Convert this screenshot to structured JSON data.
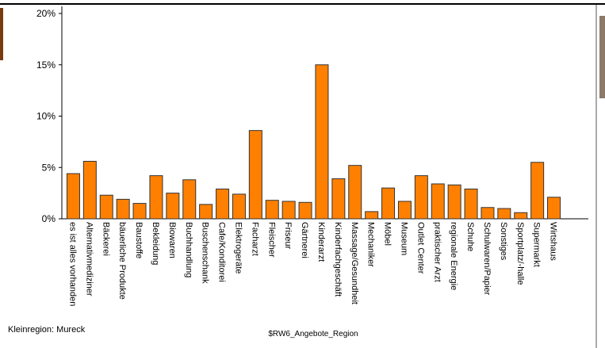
{
  "chart_data": {
    "type": "bar",
    "categories": [
      "es ist alles vorhanden",
      "Alternativmediziner",
      "Bäckerei",
      "bäuerliche Produkte",
      "Baustoffe",
      "Bekleidung",
      "Biowaren",
      "Buchhandlung",
      "Buschenschank",
      "Cafe/Konditorei",
      "Elektrogeräte",
      "Facharzt",
      "Fleischer",
      "Friseur",
      "Gärtnerei",
      "Kinderarzt",
      "Kinderfachgeschäft",
      "Massage/Gesundheit",
      "Mechaniker",
      "Möbel",
      "Museum",
      "Outlet Center",
      "praktischer Arzt",
      "regionale Energie",
      "Schuhe",
      "Schulwaren/Papier",
      "Sonstiges",
      "Sportplatz/-halle",
      "Supermarkt",
      "Wirtshaus"
    ],
    "values": [
      4.4,
      5.6,
      2.3,
      1.9,
      1.5,
      4.2,
      2.5,
      3.8,
      1.4,
      2.9,
      2.4,
      8.6,
      1.8,
      1.7,
      1.6,
      15.0,
      3.9,
      5.2,
      0.7,
      3.0,
      1.7,
      4.2,
      3.4,
      3.3,
      2.9,
      1.1,
      1.0,
      0.6,
      5.5,
      2.1
    ],
    "color": "#ff8000",
    "ylim": [
      0,
      20
    ],
    "yticks": [
      {
        "value": 0,
        "label": "0%"
      },
      {
        "value": 5,
        "label": "5%"
      },
      {
        "value": 10,
        "label": "10%"
      },
      {
        "value": 15,
        "label": "15%"
      },
      {
        "value": 20,
        "label": "20%"
      }
    ],
    "xlabel": "$RW6_Angebote_Region",
    "note": "Kleinregion: Mureck"
  }
}
